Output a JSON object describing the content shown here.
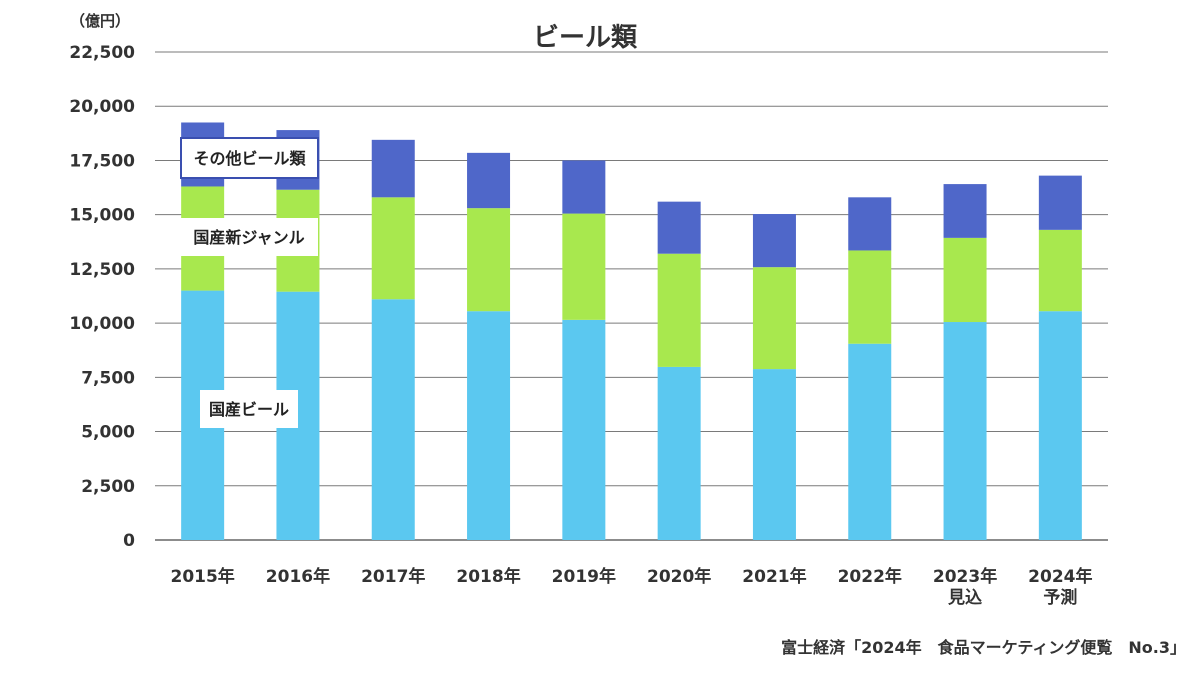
{
  "chart_data": {
    "type": "bar",
    "stacked": true,
    "title": "ビール類",
    "unit_label": "（億円）",
    "categories": [
      [
        "2015年"
      ],
      [
        "2016年"
      ],
      [
        "2017年"
      ],
      [
        "2018年"
      ],
      [
        "2019年"
      ],
      [
        "2020年"
      ],
      [
        "2021年"
      ],
      [
        "2022年"
      ],
      [
        "2023年",
        "見込"
      ],
      [
        "2024年",
        "予測"
      ]
    ],
    "series": [
      {
        "name": "国産ビール",
        "color": "#5bc8f0",
        "values": [
          11500,
          11450,
          11100,
          10550,
          10150,
          7980,
          7880,
          9050,
          10050,
          10550
        ]
      },
      {
        "name": "国産新ジャンル",
        "color": "#a8e84e",
        "values": [
          4800,
          4700,
          4700,
          4750,
          4900,
          5220,
          4700,
          4300,
          3880,
          3750
        ]
      },
      {
        "name": "その他ビール類",
        "color": "#4f67c9",
        "values": [
          2950,
          2750,
          2650,
          2550,
          2450,
          2400,
          2450,
          2450,
          2480,
          2500
        ]
      }
    ],
    "ylim": [
      0,
      22500
    ],
    "yticks": [
      "0",
      "2,500",
      "5,000",
      "7,500",
      "10,000",
      "12,500",
      "15,000",
      "17,500",
      "20,000",
      "22,500"
    ],
    "grid": true,
    "legend": "inline-labels"
  },
  "source": "富士経済「2024年　食品マーケティング便覧　No.3」"
}
